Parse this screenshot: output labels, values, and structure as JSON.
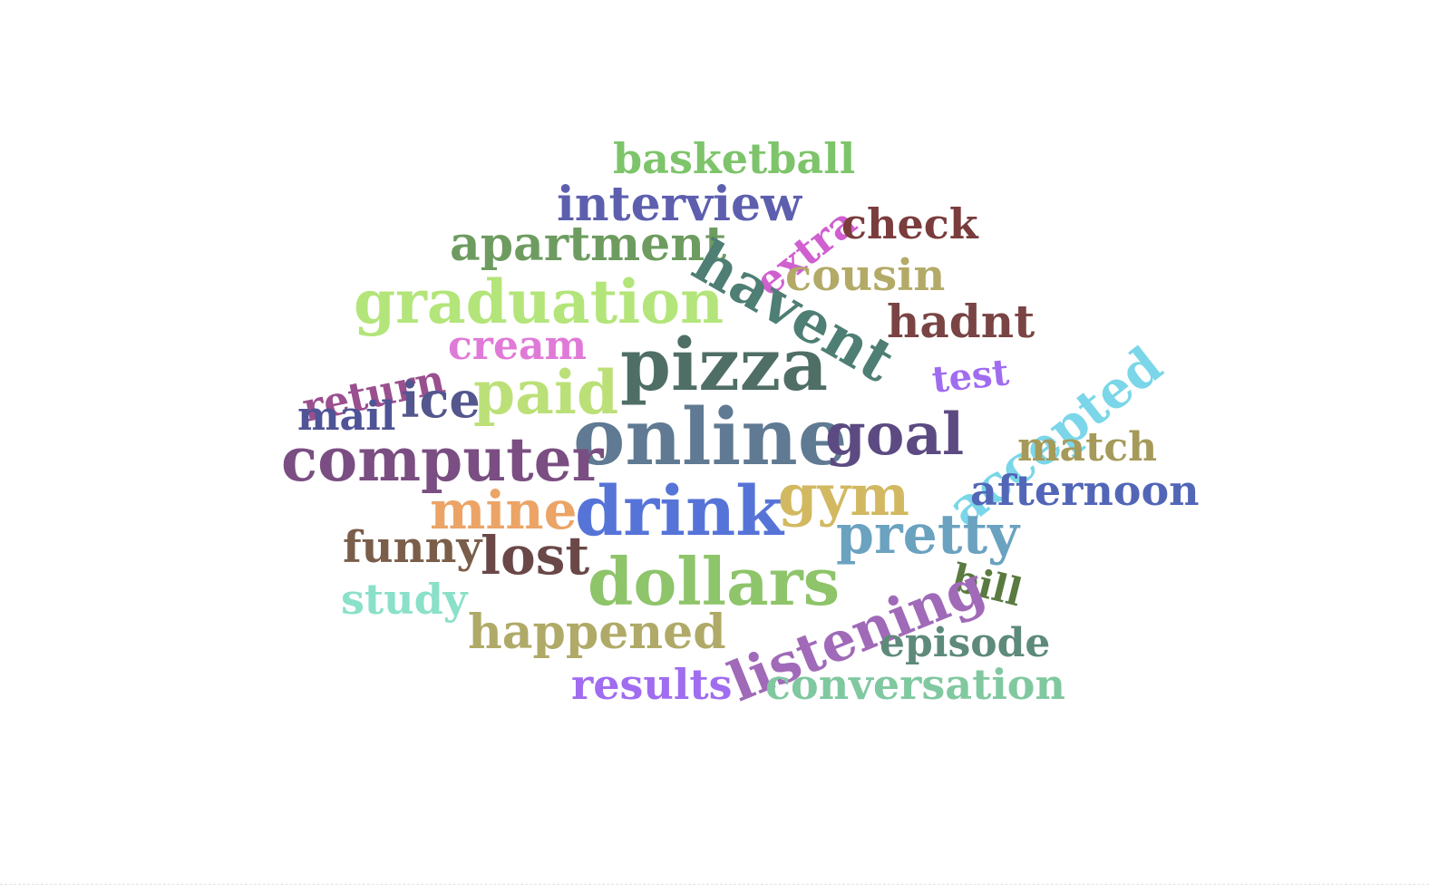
{
  "word_cloud": {
    "words": [
      {
        "text": "basketball",
        "color": "#7dc46a"
      },
      {
        "text": "interview",
        "color": "#5d5fae"
      },
      {
        "text": "extra",
        "color": "#d05fd0"
      },
      {
        "text": "check",
        "color": "#7a3c3c"
      },
      {
        "text": "apartment",
        "color": "#6e9c60"
      },
      {
        "text": "havent",
        "color": "#4e7e74"
      },
      {
        "text": "cousin",
        "color": "#b3aa68"
      },
      {
        "text": "graduation",
        "color": "#b3e57a"
      },
      {
        "text": "hadnt",
        "color": "#7a4444"
      },
      {
        "text": "return",
        "color": "#9a4f8f"
      },
      {
        "text": "cream",
        "color": "#e07ad8"
      },
      {
        "text": "pizza",
        "color": "#4f6e66"
      },
      {
        "text": "test",
        "color": "#a06cf0"
      },
      {
        "text": "accepted",
        "color": "#7ad6e8"
      },
      {
        "text": "mail",
        "color": "#4f5496"
      },
      {
        "text": "ice",
        "color": "#54568e"
      },
      {
        "text": "paid",
        "color": "#bce078"
      },
      {
        "text": "online",
        "color": "#5f7a92"
      },
      {
        "text": "goal",
        "color": "#5c4a82"
      },
      {
        "text": "match",
        "color": "#a59a5a"
      },
      {
        "text": "computer",
        "color": "#7a4e82"
      },
      {
        "text": "afternoon",
        "color": "#5266b8"
      },
      {
        "text": "mine",
        "color": "#eba466"
      },
      {
        "text": "drink",
        "color": "#5674d8"
      },
      {
        "text": "gym",
        "color": "#d2b860"
      },
      {
        "text": "pretty",
        "color": "#6aa2c0"
      },
      {
        "text": "funny",
        "color": "#7a5e4a"
      },
      {
        "text": "lost",
        "color": "#6a4848"
      },
      {
        "text": "dollars",
        "color": "#8ec46a"
      },
      {
        "text": "bill",
        "color": "#5a7a40"
      },
      {
        "text": "study",
        "color": "#8ae0c8"
      },
      {
        "text": "listening",
        "color": "#a06ab8"
      },
      {
        "text": "happened",
        "color": "#b0aa68"
      },
      {
        "text": "episode",
        "color": "#5e8a7a"
      },
      {
        "text": "results",
        "color": "#a06cf0"
      },
      {
        "text": "conversation",
        "color": "#80c8a0"
      }
    ]
  }
}
